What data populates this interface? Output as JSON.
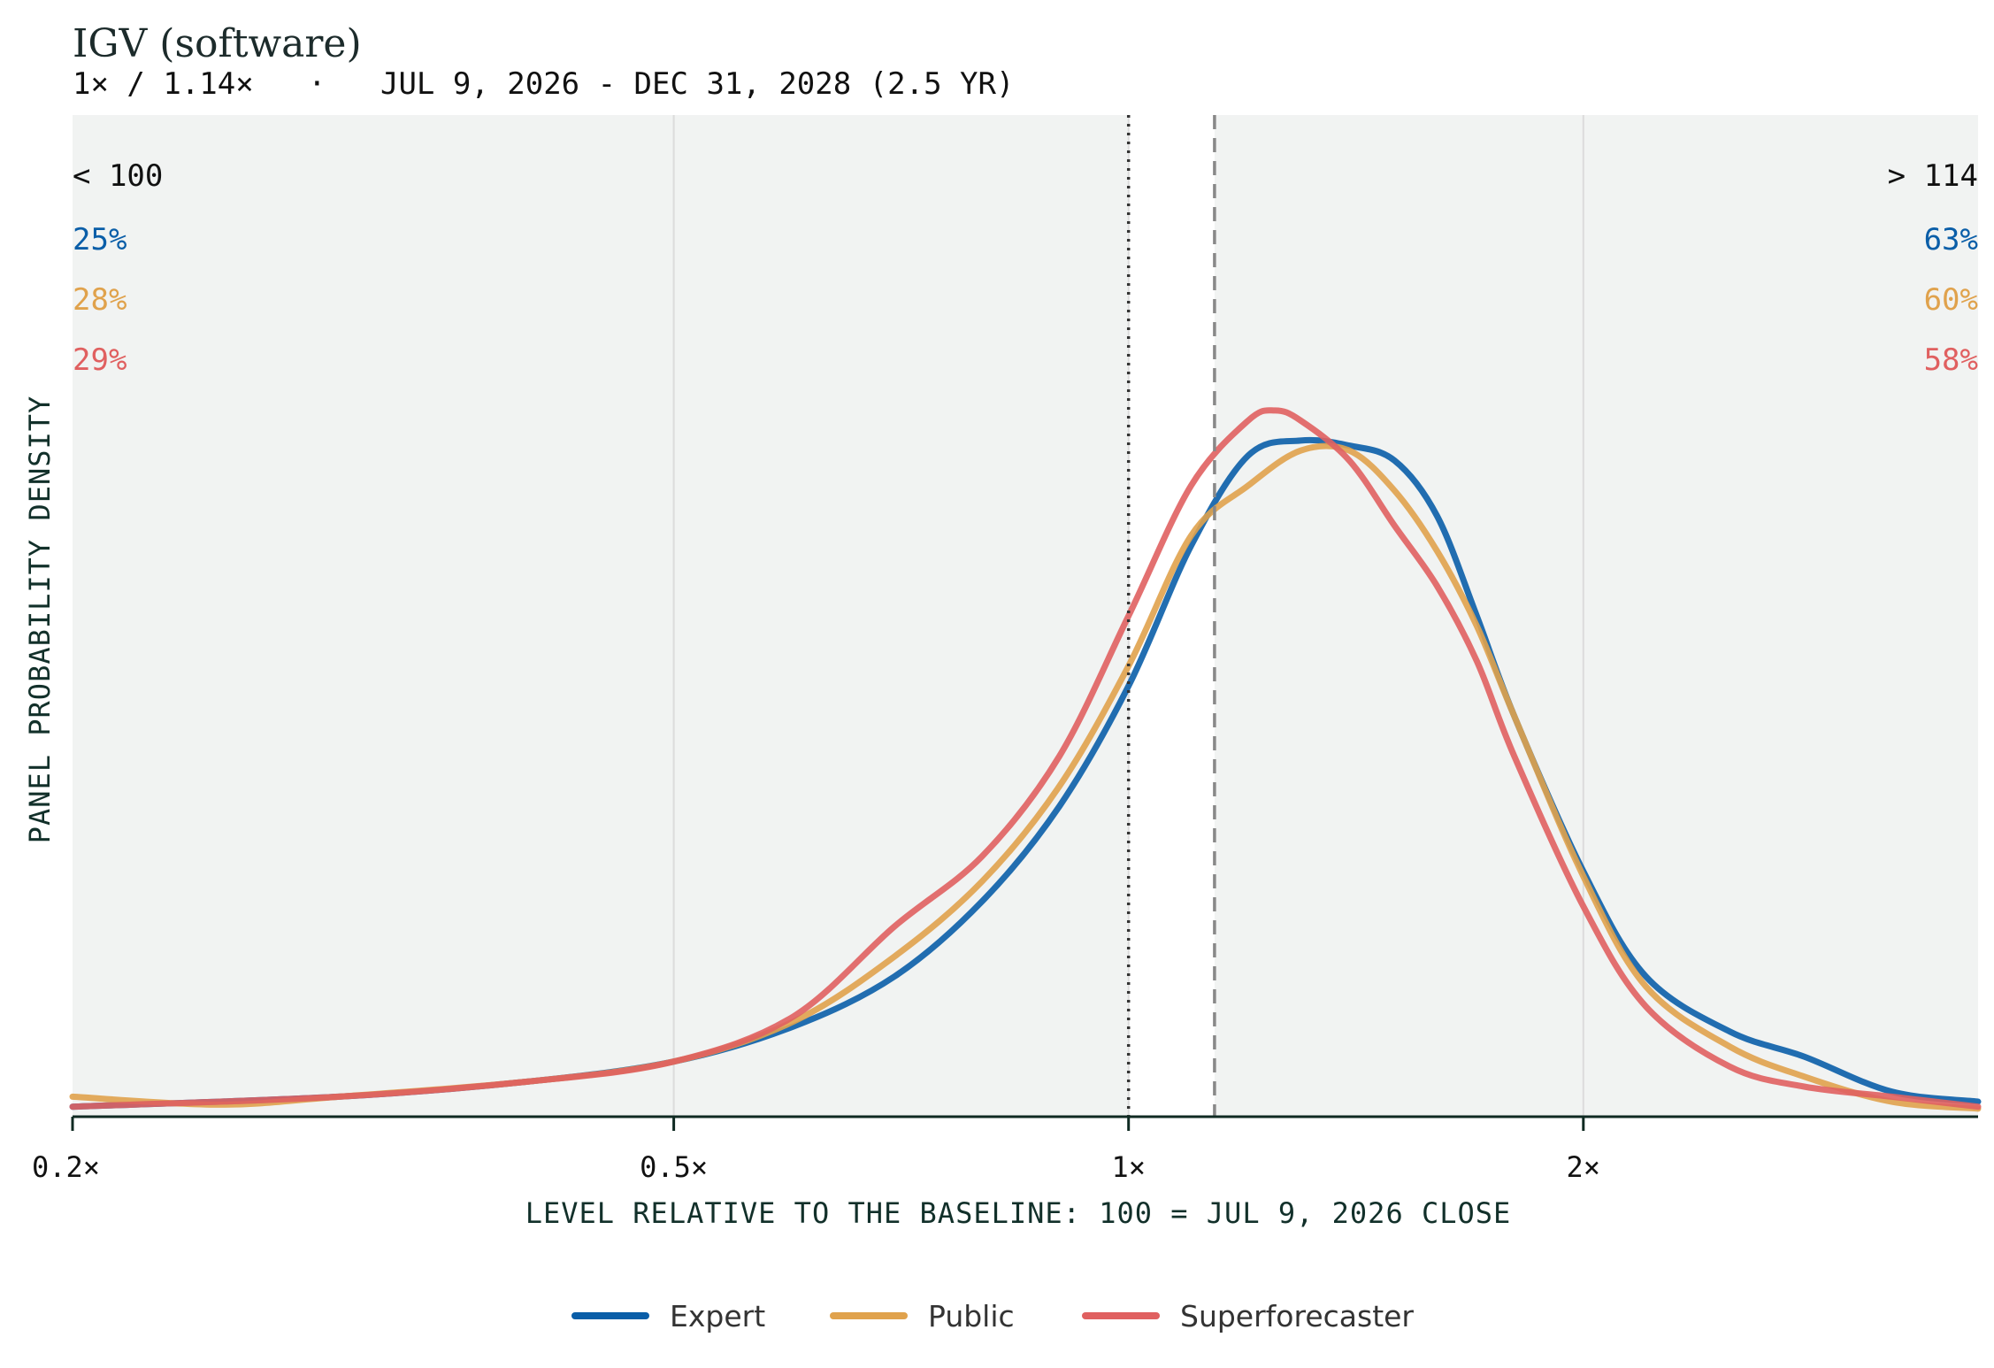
{
  "chart_data": {
    "type": "line",
    "title": "IGV (software)",
    "subtitle": "1× / 1.14×   ·   JUL 9, 2026 - DEC 31, 2028 (2.5 YR)",
    "xlabel": "LEVEL RELATIVE TO THE BASELINE: 100 = JUL 9, 2026 CLOSE",
    "ylabel": "PANEL PROBABILITY DENSITY",
    "x_scale": "log",
    "xlim": [
      0.2,
      3.65
    ],
    "ylim": [
      0,
      1.0
    ],
    "x_ticks": [
      {
        "value": 0.2,
        "label": "0.2×"
      },
      {
        "value": 0.5,
        "label": "0.5×"
      },
      {
        "value": 1,
        "label": "1×"
      },
      {
        "value": 2,
        "label": "2×"
      }
    ],
    "reference_lines": [
      {
        "value": 1.0,
        "style": "dotted",
        "color": "#333333"
      },
      {
        "value": 1.14,
        "style": "dashed",
        "color": "#888888"
      }
    ],
    "shaded_regions": [
      {
        "from": 0.2,
        "to": 1.0,
        "color": "#f1f3f2"
      },
      {
        "from": 1.14,
        "to": 3.65,
        "color": "#f1f3f2"
      }
    ],
    "tail_labels": {
      "left": {
        "label": "< 100",
        "values": [
          "25%",
          "28%",
          "29%"
        ]
      },
      "right": {
        "label": "> 114",
        "values": [
          "63%",
          "60%",
          "58%"
        ]
      }
    },
    "grid": "vertical at ticks",
    "legend_position": "bottom-center",
    "series": [
      {
        "name": "Expert",
        "color": "#0a5ea8",
        "x": [
          0.2,
          0.3,
          0.4,
          0.5,
          0.6,
          0.7,
          0.8,
          0.9,
          1.0,
          1.1,
          1.2,
          1.3,
          1.4,
          1.5,
          1.6,
          1.7,
          1.8,
          2.0,
          2.2,
          2.5,
          2.8,
          3.2,
          3.65
        ],
        "y": [
          0.01,
          0.02,
          0.035,
          0.055,
          0.09,
          0.14,
          0.215,
          0.31,
          0.43,
          0.57,
          0.66,
          0.675,
          0.67,
          0.655,
          0.6,
          0.5,
          0.4,
          0.245,
          0.14,
          0.085,
          0.06,
          0.025,
          0.015
        ]
      },
      {
        "name": "Public",
        "color": "#e0a24c",
        "x": [
          0.2,
          0.25,
          0.3,
          0.4,
          0.5,
          0.6,
          0.7,
          0.8,
          0.9,
          1.0,
          1.1,
          1.2,
          1.3,
          1.4,
          1.5,
          1.6,
          1.7,
          1.8,
          2.0,
          2.2,
          2.5,
          2.8,
          3.2,
          3.65
        ],
        "y": [
          0.02,
          0.012,
          0.02,
          0.035,
          0.055,
          0.095,
          0.16,
          0.235,
          0.33,
          0.45,
          0.58,
          0.63,
          0.665,
          0.665,
          0.625,
          0.565,
          0.49,
          0.4,
          0.24,
          0.13,
          0.07,
          0.04,
          0.015,
          0.008
        ]
      },
      {
        "name": "Superforecaster",
        "color": "#e06060",
        "x": [
          0.2,
          0.3,
          0.4,
          0.5,
          0.6,
          0.7,
          0.8,
          0.9,
          1.0,
          1.1,
          1.2,
          1.25,
          1.3,
          1.4,
          1.5,
          1.6,
          1.7,
          1.8,
          2.0,
          2.2,
          2.5,
          2.8,
          3.2,
          3.65
        ],
        "y": [
          0.01,
          0.02,
          0.035,
          0.055,
          0.1,
          0.19,
          0.26,
          0.36,
          0.5,
          0.63,
          0.695,
          0.705,
          0.695,
          0.655,
          0.59,
          0.53,
          0.455,
          0.36,
          0.21,
          0.11,
          0.05,
          0.03,
          0.02,
          0.01
        ]
      }
    ]
  }
}
